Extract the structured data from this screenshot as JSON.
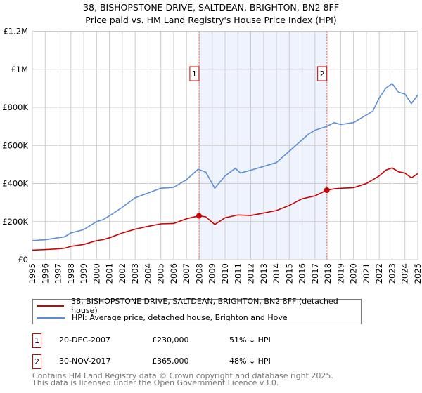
{
  "chart_data": {
    "type": "line",
    "title": "38, BISHOPSTONE DRIVE, SALTDEAN, BRIGHTON, BN2 8FF",
    "subtitle": "Price paid vs. HM Land Registry's House Price Index (HPI)",
    "xlim": [
      1995,
      2025
    ],
    "ylim": [
      0,
      1200000
    ],
    "x_ticks": [
      "1995",
      "1996",
      "1997",
      "1998",
      "1999",
      "2000",
      "2001",
      "2002",
      "2003",
      "2004",
      "2005",
      "2006",
      "2007",
      "2008",
      "2009",
      "2010",
      "2011",
      "2012",
      "2013",
      "2014",
      "2015",
      "2016",
      "2017",
      "2018",
      "2019",
      "2020",
      "2021",
      "2022",
      "2023",
      "2024",
      "2025"
    ],
    "y_ticks": [
      {
        "v": 0,
        "label": "£0"
      },
      {
        "v": 200000,
        "label": "£200K"
      },
      {
        "v": 400000,
        "label": "£400K"
      },
      {
        "v": 600000,
        "label": "£600K"
      },
      {
        "v": 800000,
        "label": "£800K"
      },
      {
        "v": 1000000,
        "label": "£1M"
      },
      {
        "v": 1200000,
        "label": "£1.2M"
      }
    ],
    "grid": true,
    "shaded_range": [
      2007.97,
      2017.92
    ],
    "series": [
      {
        "name": "38, BISHOPSTONE DRIVE, SALTDEAN, BRIGHTON, BN2 8FF (detached house)",
        "color": "#cc0000",
        "x": [
          1995,
          1996,
          1997,
          1997.5,
          1998,
          1999,
          2000,
          2000.5,
          2001,
          2002,
          2003,
          2004,
          2005,
          2006,
          2007,
          2007.97,
          2008.5,
          2009.2,
          2010,
          2011,
          2012,
          2013,
          2014,
          2015,
          2016,
          2017,
          2017.92,
          2018.5,
          2019,
          2020,
          2021,
          2022,
          2022.5,
          2023,
          2023.5,
          2024,
          2024.5,
          2025
        ],
        "y": [
          50000,
          53000,
          57000,
          60000,
          70000,
          80000,
          100000,
          105000,
          115000,
          140000,
          160000,
          175000,
          188000,
          190000,
          215000,
          230000,
          225000,
          185000,
          220000,
          235000,
          232000,
          245000,
          258000,
          285000,
          320000,
          335000,
          365000,
          372000,
          375000,
          378000,
          400000,
          440000,
          470000,
          482000,
          462000,
          455000,
          430000,
          452000
        ]
      },
      {
        "name": "HPI: Average price, detached house, Brighton and Hove",
        "color": "#5b8ed6",
        "x": [
          1995,
          1996,
          1997,
          1997.5,
          1998,
          1999,
          2000,
          2000.5,
          2001,
          2002,
          2003,
          2004,
          2005,
          2006,
          2007,
          2007.9,
          2008.5,
          2009.2,
          2010,
          2010.8,
          2011.2,
          2012,
          2013,
          2014,
          2015,
          2016,
          2016.5,
          2017,
          2017.9,
          2018.5,
          2019,
          2020,
          2021,
          2021.5,
          2022,
          2022.5,
          2023,
          2023.5,
          2024,
          2024.5,
          2025
        ],
        "y": [
          100000,
          105000,
          115000,
          120000,
          140000,
          158000,
          200000,
          210000,
          230000,
          275000,
          325000,
          350000,
          375000,
          380000,
          420000,
          475000,
          460000,
          375000,
          440000,
          480000,
          455000,
          470000,
          490000,
          510000,
          570000,
          630000,
          660000,
          680000,
          700000,
          720000,
          710000,
          720000,
          760000,
          780000,
          850000,
          900000,
          925000,
          880000,
          870000,
          820000,
          865000
        ]
      }
    ],
    "sales": [
      {
        "id": "1",
        "x": 2007.97,
        "y": 230000,
        "date": "20-DEC-2007",
        "price": "£230,000",
        "hpi": "51% ↓ HPI"
      },
      {
        "id": "2",
        "x": 2017.92,
        "y": 365000,
        "date": "30-NOV-2017",
        "price": "£365,000",
        "hpi": "48% ↓ HPI"
      }
    ],
    "legend_placement": "bottom"
  },
  "footer": {
    "line1": "Contains HM Land Registry data © Crown copyright and database right 2025.",
    "line2": "This data is licensed under the Open Government Licence v3.0."
  }
}
